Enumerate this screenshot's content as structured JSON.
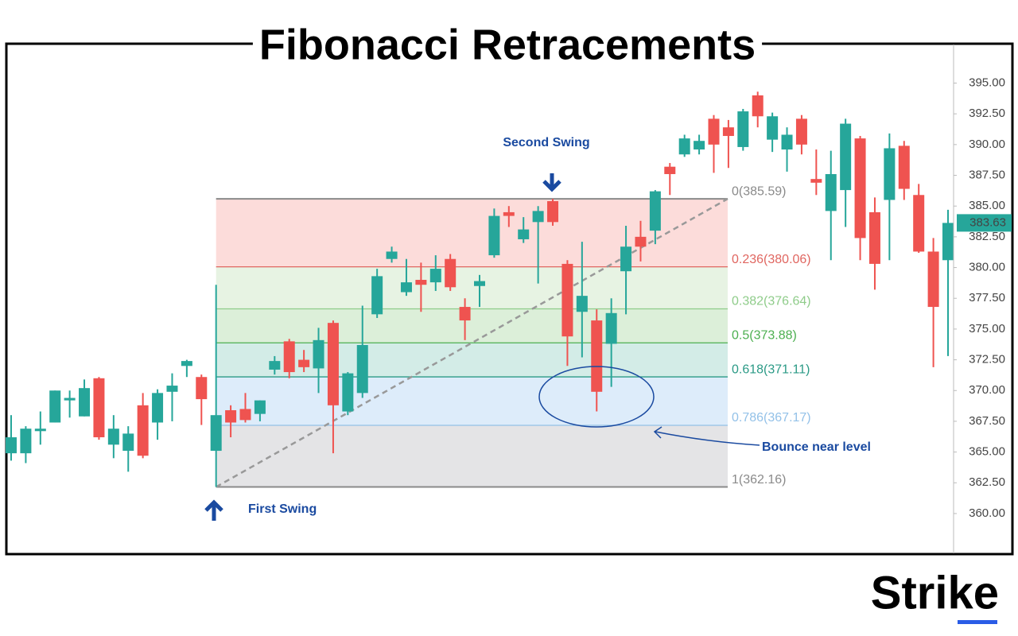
{
  "chart_data": {
    "type": "candlestick",
    "title": "Fibonacci Retracements",
    "logo": "Strike",
    "up_color": "#26a69a",
    "down_color": "#ef5350",
    "series": [
      {
        "open": [
          364.9,
          364.9,
          366.7,
          367.4,
          369.2,
          367.9,
          371.0,
          365.6,
          365.1,
          368.8,
          367.4,
          369.9,
          372.0,
          371.1,
          365.1,
          368.4,
          368.5,
          368.1,
          371.7,
          374.0,
          372.5,
          371.8,
          375.5,
          368.3,
          369.8,
          376.2,
          380.7,
          378.0,
          379.0,
          378.8,
          380.7,
          376.8,
          378.5,
          381.0,
          384.5,
          382.3,
          383.7,
          385.4,
          380.3,
          376.4,
          375.7,
          373.8,
          379.7,
          382.5,
          383.0,
          388.2,
          389.2,
          389.6,
          392.1,
          391.4,
          389.8,
          394.0,
          390.4,
          389.6,
          392.1,
          387.2,
          384.6,
          386.3,
          390.5,
          384.5,
          385.5,
          389.9,
          385.9,
          381.3,
          380.6
        ],
        "high": [
          368.0,
          367.1,
          368.3,
          370.0,
          370.0,
          370.9,
          371.1,
          368.0,
          367.1,
          369.8,
          370.1,
          371.4,
          372.5,
          371.3,
          378.6,
          368.8,
          369.8,
          369.2,
          372.8,
          374.2,
          373.3,
          375.1,
          375.7,
          371.5,
          376.9,
          379.9,
          381.7,
          380.7,
          380.4,
          381.0,
          381.1,
          377.5,
          379.4,
          384.8,
          385.0,
          384.1,
          385.0,
          385.59,
          380.6,
          382.1,
          376.6,
          377.5,
          383.4,
          383.8,
          386.3,
          388.5,
          390.8,
          390.8,
          392.4,
          392.0,
          392.9,
          394.3,
          392.6,
          391.4,
          392.4,
          389.6,
          389.5,
          392.1,
          390.7,
          385.7,
          390.9,
          390.3,
          386.8,
          382.4,
          384.7
        ],
        "low": [
          364.3,
          364.1,
          365.6,
          367.4,
          367.8,
          367.9,
          366.0,
          364.5,
          363.4,
          364.5,
          366.0,
          367.5,
          371.1,
          367.2,
          362.16,
          366.2,
          367.4,
          367.5,
          371.3,
          371.0,
          371.5,
          369.8,
          364.9,
          368.0,
          369.4,
          375.9,
          380.4,
          377.7,
          376.4,
          378.1,
          378.1,
          374.1,
          376.8,
          380.8,
          383.3,
          382.0,
          378.7,
          383.4,
          372.0,
          372.7,
          368.3,
          370.3,
          376.2,
          380.5,
          381.9,
          385.9,
          389.0,
          389.2,
          387.7,
          388.1,
          389.5,
          391.4,
          389.4,
          387.8,
          389.2,
          385.9,
          380.6,
          383.3,
          380.6,
          378.2,
          380.6,
          385.5,
          381.2,
          371.9,
          372.8
        ],
        "close": [
          366.2,
          366.9,
          366.9,
          370.0,
          369.4,
          370.2,
          366.2,
          366.9,
          366.5,
          364.7,
          369.8,
          370.4,
          372.4,
          369.3,
          368.0,
          367.4,
          367.6,
          369.2,
          372.4,
          371.5,
          371.9,
          374.1,
          368.8,
          371.4,
          373.7,
          379.3,
          381.3,
          378.8,
          378.6,
          379.9,
          378.4,
          375.7,
          378.9,
          384.2,
          384.2,
          383.1,
          384.6,
          383.7,
          374.4,
          377.7,
          369.9,
          376.3,
          381.7,
          381.7,
          386.2,
          387.6,
          390.5,
          390.3,
          390.0,
          390.7,
          392.7,
          392.3,
          392.3,
          390.8,
          390.0,
          386.9,
          387.6,
          391.7,
          382.4,
          380.3,
          389.7,
          386.4,
          381.3,
          376.8,
          383.63
        ]
      }
    ],
    "last_price": 383.63,
    "ylim": [
      356.7,
      398.2
    ],
    "yticks": [
      {
        "value": 360,
        "label": "360.00"
      },
      {
        "value": 362.5,
        "label": "362.50"
      },
      {
        "value": 365,
        "label": "365.00"
      },
      {
        "value": 367.5,
        "label": "367.50"
      },
      {
        "value": 370,
        "label": "370.00"
      },
      {
        "value": 372.5,
        "label": "372.50"
      },
      {
        "value": 375,
        "label": "375.00"
      },
      {
        "value": 377.5,
        "label": "377.50"
      },
      {
        "value": 380,
        "label": "380.00"
      },
      {
        "value": 382.5,
        "label": "382.50"
      },
      {
        "value": 385,
        "label": "385.00"
      },
      {
        "value": 387.5,
        "label": "387.50"
      },
      {
        "value": 390,
        "label": "390.00"
      },
      {
        "value": 392.5,
        "label": "392.50"
      },
      {
        "value": 395,
        "label": "395.00"
      }
    ],
    "fib_levels": [
      {
        "label": "0(385.59)",
        "value": 385.59,
        "color": "#8a8a8a",
        "fill": "#fcdcda"
      },
      {
        "label": "0.236(380.06)",
        "value": 380.06,
        "color": "#e06660",
        "fill": "#e7f3e3"
      },
      {
        "label": "0.382(376.64)",
        "value": 376.64,
        "color": "#8fcc8a",
        "fill": "#dcefd9"
      },
      {
        "label": "0.5(373.88)",
        "value": 373.88,
        "color": "#4caf50",
        "fill": "#d3ece7"
      },
      {
        "label": "0.618(371.11)",
        "value": 371.11,
        "color": "#2b9a86",
        "fill": "#ddecfa"
      },
      {
        "label": "0.786(367.17)",
        "value": 367.17,
        "color": "#93c1e8",
        "fill": "#e4e4e6"
      },
      {
        "label": "1(362.16)",
        "value": 362.16,
        "color": "#8a8a8a"
      }
    ],
    "annotations": {
      "second_swing": "Second Swing",
      "first_swing": "First Swing",
      "bounce": "Bounce near level"
    }
  }
}
